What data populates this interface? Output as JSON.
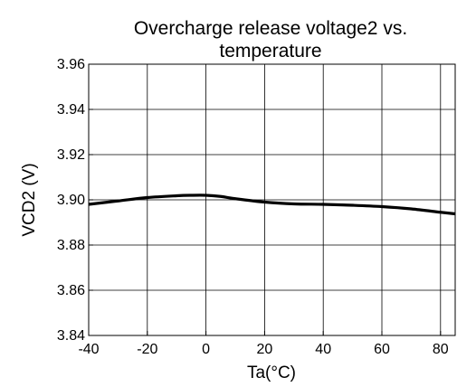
{
  "chart_data": {
    "type": "line",
    "title_lines": [
      "Overcharge release voltage2 vs.",
      "temperature"
    ],
    "xlabel": "Ta(°C)",
    "ylabel": "VCD2 (V)",
    "xlim": [
      -40,
      85
    ],
    "ylim": [
      3.84,
      3.96
    ],
    "xticks": [
      -40,
      -20,
      0,
      20,
      40,
      60,
      80
    ],
    "xtick_labels": [
      "-40",
      "-20",
      "0",
      "20",
      "40",
      "60",
      "80"
    ],
    "yticks": [
      3.84,
      3.86,
      3.88,
      3.9,
      3.92,
      3.94,
      3.96
    ],
    "ytick_labels": [
      "3.84",
      "3.86",
      "3.88",
      "3.90",
      "3.92",
      "3.94",
      "3.96"
    ],
    "grid": true,
    "series": [
      {
        "color": "#000000",
        "x": [
          -40,
          -30,
          -20,
          -10,
          -5,
          0,
          5,
          10,
          20,
          30,
          40,
          50,
          60,
          70,
          80,
          85
        ],
        "y": [
          3.898,
          3.8995,
          3.901,
          3.9018,
          3.902,
          3.902,
          3.9015,
          3.9005,
          3.899,
          3.8982,
          3.898,
          3.8976,
          3.897,
          3.896,
          3.8945,
          3.8938
        ]
      }
    ]
  }
}
